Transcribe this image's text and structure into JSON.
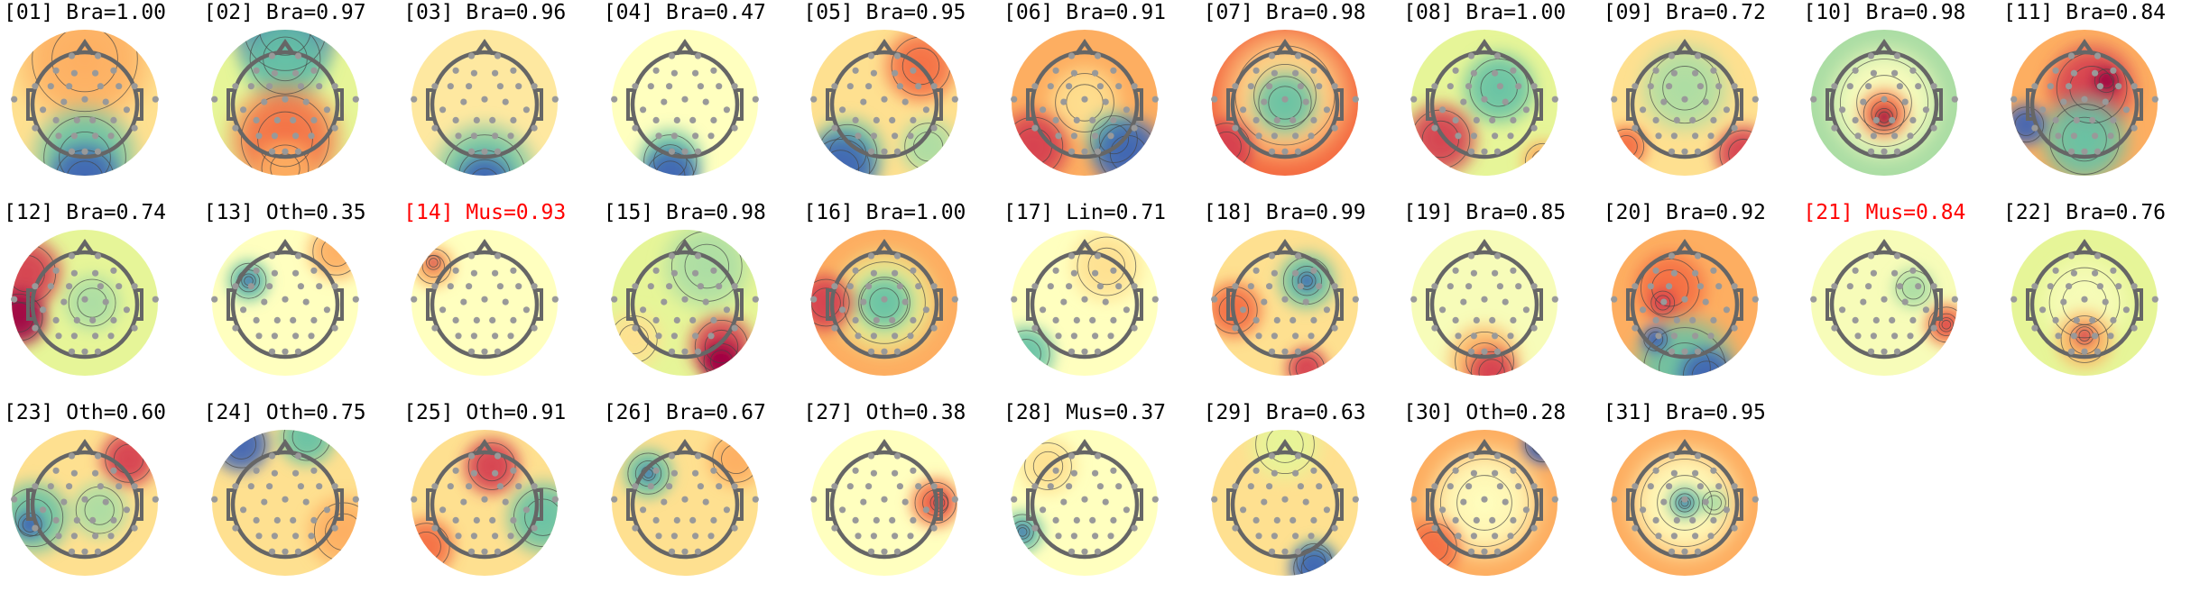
{
  "colors": {
    "normal_label": "#000000",
    "flagged_label": "#ff0000"
  },
  "colormap": [
    "#3f64b4",
    "#66c2a5",
    "#abdda4",
    "#e6f598",
    "#ffffbf",
    "#fee090",
    "#fdae61",
    "#f46d43",
    "#d53e4f",
    "#9e0142"
  ],
  "components": [
    {
      "label": "[01] Bra=1.00",
      "flagged": false
    },
    {
      "label": "[02] Bra=0.97",
      "flagged": false
    },
    {
      "label": "[03] Bra=0.96",
      "flagged": false
    },
    {
      "label": "[04] Bra=0.47",
      "flagged": false
    },
    {
      "label": "[05] Bra=0.95",
      "flagged": false
    },
    {
      "label": "[06] Bra=0.91",
      "flagged": false
    },
    {
      "label": "[07] Bra=0.98",
      "flagged": false
    },
    {
      "label": "[08] Bra=1.00",
      "flagged": false
    },
    {
      "label": "[09] Bra=0.72",
      "flagged": false
    },
    {
      "label": "[10] Bra=0.98",
      "flagged": false
    },
    {
      "label": "[11] Bra=0.84",
      "flagged": false
    },
    {
      "label": "[12] Bra=0.74",
      "flagged": false
    },
    {
      "label": "[13] Oth=0.35",
      "flagged": false
    },
    {
      "label": "[14] Mus=0.93",
      "flagged": true
    },
    {
      "label": "[15] Bra=0.98",
      "flagged": false
    },
    {
      "label": "[16] Bra=1.00",
      "flagged": false
    },
    {
      "label": "[17] Lin=0.71",
      "flagged": false
    },
    {
      "label": "[18] Bra=0.99",
      "flagged": false
    },
    {
      "label": "[19] Bra=0.85",
      "flagged": false
    },
    {
      "label": "[20] Bra=0.92",
      "flagged": false
    },
    {
      "label": "[21] Mus=0.84",
      "flagged": true
    },
    {
      "label": "[22] Bra=0.76",
      "flagged": false
    },
    {
      "label": "[23] Oth=0.60",
      "flagged": false
    },
    {
      "label": "[24] Oth=0.75",
      "flagged": false
    },
    {
      "label": "[25] Oth=0.91",
      "flagged": false
    },
    {
      "label": "[26] Bra=0.67",
      "flagged": false
    },
    {
      "label": "[27] Oth=0.38",
      "flagged": false
    },
    {
      "label": "[28] Mus=0.37",
      "flagged": false
    },
    {
      "label": "[29] Bra=0.63",
      "flagged": false
    },
    {
      "label": "[30] Oth=0.28",
      "flagged": false
    },
    {
      "label": "[31] Bra=0.95",
      "flagged": false
    }
  ]
}
